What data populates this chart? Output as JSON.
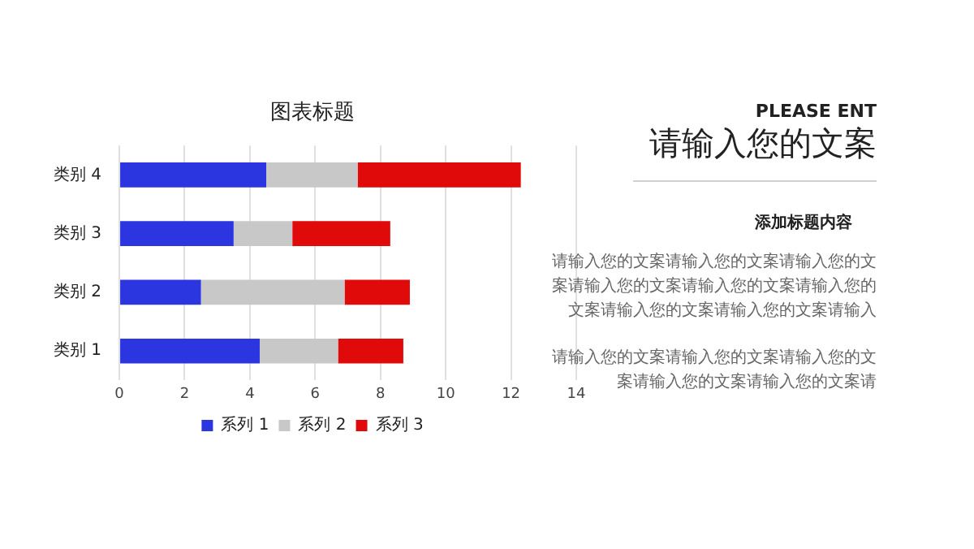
{
  "chart_data": [
    {
      "type": "bar",
      "title": "图表标题",
      "orientation": "horizontal",
      "stacked": true,
      "categories": [
        "类别 4",
        "类别 3",
        "类别 2",
        "类别 1"
      ],
      "series": [
        {
          "name": "系列 1",
          "color": "#2b35e0",
          "values": [
            4.5,
            3.5,
            2.5,
            4.3
          ]
        },
        {
          "name": "系列 2",
          "color": "#c8c8c8",
          "values": [
            2.8,
            1.8,
            4.4,
            2.4
          ]
        },
        {
          "name": "系列 3",
          "color": "#e00a0a",
          "values": [
            5.0,
            3.0,
            2.0,
            2.0
          ]
        }
      ],
      "xlim": [
        0,
        14
      ],
      "xticks": [
        0,
        2,
        4,
        6,
        8,
        10,
        12,
        14
      ],
      "grid": "x",
      "legend": "bottom"
    },
    {
      "type": "other",
      "subtitle": "PLEASE ENT",
      "title": "请输入您的文案",
      "annotations": [
        "添加标题内容",
        "请输入您的文案请输入您的文案请输入您的文案请输入您的文案请输入您的文案请输入您的文案请输入您的文案请输入您的文案请输入",
        "请输入您的文案请输入您的文案请输入您的文案请输入您的文案请输入您的文案请"
      ]
    }
  ]
}
